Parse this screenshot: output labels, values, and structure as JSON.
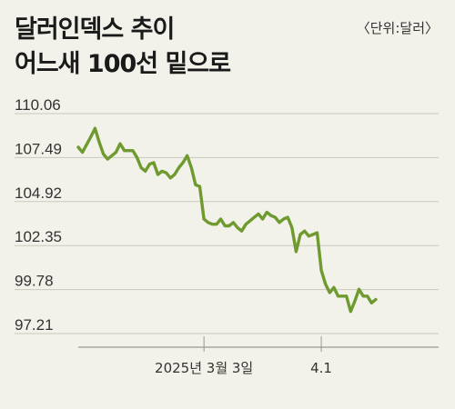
{
  "header": {
    "title_line1": "달러인덱스 추이",
    "title_line2": "어느새 100선 밑으로",
    "unit": "〈단위:달러〉"
  },
  "colors": {
    "line": "#6e9a2f",
    "grid": "#c9c9bf",
    "axis": "#999990",
    "background": "#f2f1ea"
  },
  "chart_data": {
    "type": "line",
    "title": "달러인덱스 추이",
    "ylim": [
      97.21,
      110.06
    ],
    "yticks": [
      97.21,
      99.78,
      102.35,
      104.92,
      107.49,
      110.06
    ],
    "ytick_labels": [
      "97.21",
      "99.78",
      "102.35",
      "104.92",
      "107.49",
      "110.06"
    ],
    "xlim": [
      0,
      86
    ],
    "xticks": [
      {
        "x": 30,
        "label": "2025년 3월 3일"
      },
      {
        "x": 58,
        "label": "4.1"
      }
    ],
    "grid": true,
    "series": [
      {
        "values": [
          [
            0,
            108.1
          ],
          [
            1,
            107.8
          ],
          [
            3,
            108.7
          ],
          [
            4,
            109.2
          ],
          [
            5,
            108.4
          ],
          [
            6,
            107.7
          ],
          [
            7,
            107.4
          ],
          [
            9,
            107.8
          ],
          [
            10,
            108.3
          ],
          [
            11,
            107.9
          ],
          [
            13,
            107.9
          ],
          [
            14,
            107.5
          ],
          [
            15,
            106.9
          ],
          [
            16,
            106.7
          ],
          [
            17,
            107.1
          ],
          [
            18,
            107.2
          ],
          [
            19,
            106.5
          ],
          [
            20,
            106.7
          ],
          [
            21,
            106.6
          ],
          [
            22,
            106.3
          ],
          [
            23,
            106.5
          ],
          [
            24,
            106.9
          ],
          [
            25,
            107.2
          ],
          [
            26,
            107.6
          ],
          [
            27,
            106.9
          ],
          [
            28,
            105.9
          ],
          [
            29,
            105.8
          ],
          [
            30,
            103.9
          ],
          [
            31,
            103.7
          ],
          [
            32,
            103.6
          ],
          [
            33,
            103.6
          ],
          [
            34,
            103.9
          ],
          [
            35,
            103.5
          ],
          [
            36,
            103.5
          ],
          [
            37,
            103.7
          ],
          [
            38,
            103.4
          ],
          [
            39,
            103.2
          ],
          [
            40,
            103.6
          ],
          [
            41,
            103.8
          ],
          [
            42,
            104.0
          ],
          [
            43,
            104.2
          ],
          [
            44,
            103.9
          ],
          [
            45,
            104.3
          ],
          [
            46,
            104.1
          ],
          [
            47,
            104.0
          ],
          [
            48,
            103.7
          ],
          [
            49,
            103.9
          ],
          [
            50,
            104.0
          ],
          [
            51,
            103.4
          ],
          [
            52,
            102.0
          ],
          [
            53,
            103.0
          ],
          [
            54,
            103.2
          ],
          [
            55,
            102.9
          ],
          [
            56,
            103.0
          ],
          [
            57,
            103.1
          ],
          [
            58,
            100.9
          ],
          [
            59,
            100.1
          ],
          [
            60,
            99.6
          ],
          [
            61,
            99.9
          ],
          [
            62,
            99.4
          ],
          [
            63,
            99.4
          ],
          [
            64,
            99.4
          ],
          [
            65,
            98.5
          ],
          [
            66,
            99.1
          ],
          [
            67,
            99.8
          ],
          [
            68,
            99.4
          ],
          [
            69,
            99.4
          ],
          [
            70,
            99.0
          ],
          [
            71,
            99.2
          ]
        ]
      }
    ]
  }
}
